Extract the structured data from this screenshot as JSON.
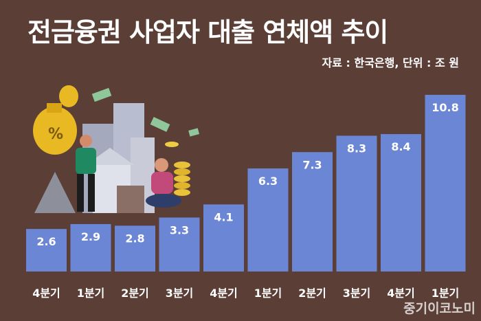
{
  "header": {
    "title": "전금융권 사업자 대출 연체액 추이",
    "source": "자료 : 한국은행, 단위 : 조 원",
    "watermark": "중기이코노미"
  },
  "colors": {
    "background": "#5b3f37",
    "bar": "#6c86d6",
    "text": "#ffffff"
  },
  "chart_data": {
    "type": "bar",
    "title": "전금융권 사업자 대출 연체액 추이",
    "categories": [
      "4분기",
      "1분기",
      "2분기",
      "3분기",
      "4분기",
      "1분기",
      "2분기",
      "3분기",
      "4분기",
      "1분기"
    ],
    "values": [
      2.6,
      2.9,
      2.8,
      3.3,
      4.1,
      6.3,
      7.3,
      8.3,
      8.4,
      10.8
    ],
    "ylim": [
      0,
      12
    ],
    "grid": false,
    "legend": "none"
  }
}
